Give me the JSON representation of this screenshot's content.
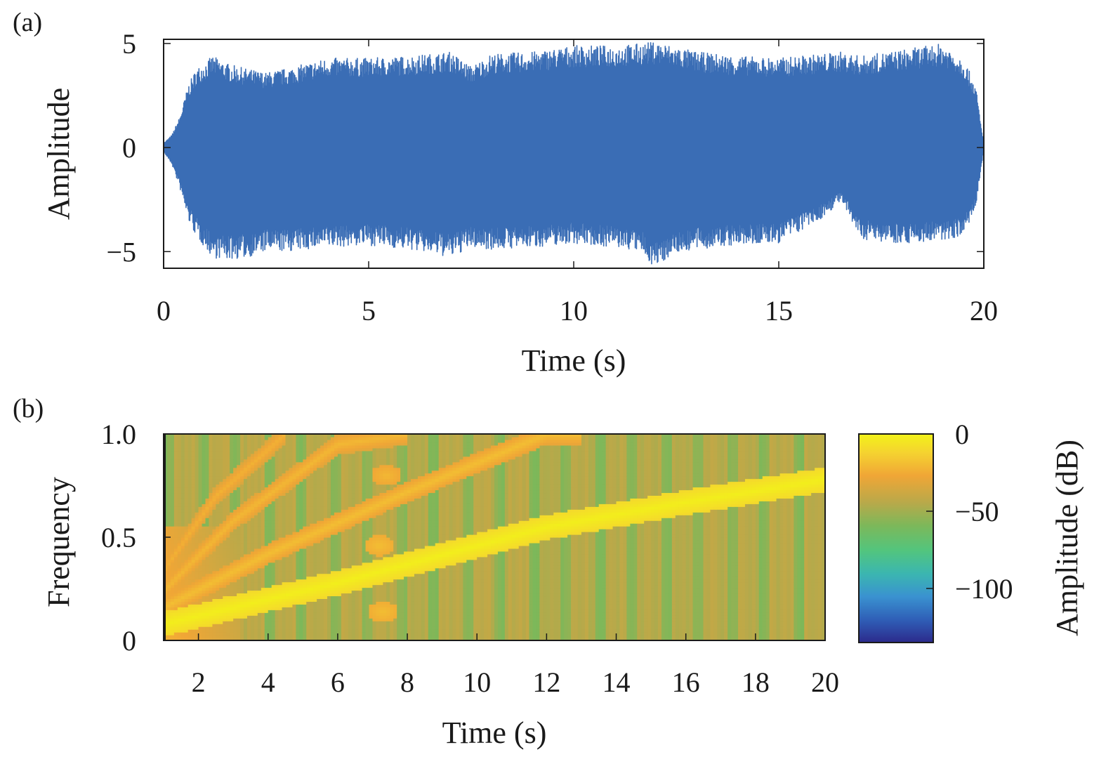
{
  "chart_data": [
    {
      "panel": "(a)",
      "type": "line",
      "xlabel": "Time (s)",
      "ylabel": "Amplitude",
      "xlim": [
        0,
        20
      ],
      "ylim": [
        -5.8,
        5.2
      ],
      "xticks": [
        0,
        5,
        10,
        15,
        20
      ],
      "yticks": [
        -5,
        0,
        5
      ],
      "ytick_labels": [
        "−5",
        "0",
        "5"
      ],
      "grid": false,
      "color": "#3a6db5",
      "envelope": {
        "t": [
          0,
          0.2,
          0.4,
          0.6,
          0.8,
          1.0,
          1.2,
          1.6,
          2.0,
          2.5,
          3.0,
          4.0,
          5.0,
          6.0,
          7.0,
          7.5,
          8.0,
          9.0,
          10.0,
          11.0,
          11.6,
          12.0,
          12.4,
          13.0,
          14.0,
          15.0,
          16.0,
          16.5,
          17.0,
          18.0,
          19.0,
          19.5,
          19.8,
          20.0
        ],
        "upper": [
          0.2,
          0.6,
          1.5,
          3.0,
          3.8,
          4.1,
          4.4,
          4.0,
          3.8,
          3.6,
          3.8,
          4.3,
          4.3,
          4.4,
          4.6,
          3.9,
          4.5,
          4.6,
          4.9,
          4.9,
          5.0,
          5.1,
          4.9,
          4.6,
          4.4,
          4.3,
          4.5,
          4.6,
          4.4,
          4.7,
          5.0,
          4.3,
          3.0,
          0.1
        ],
        "lower": [
          -0.2,
          -0.8,
          -2.0,
          -3.5,
          -4.3,
          -4.8,
          -5.3,
          -5.4,
          -5.3,
          -5.0,
          -5.0,
          -4.8,
          -4.7,
          -4.9,
          -5.3,
          -4.8,
          -4.9,
          -4.8,
          -4.6,
          -4.8,
          -5.0,
          -5.8,
          -5.1,
          -4.9,
          -4.7,
          -4.6,
          -3.5,
          -2.6,
          -4.4,
          -4.6,
          -4.5,
          -4.2,
          -3.0,
          -0.1
        ]
      }
    },
    {
      "panel": "(b)",
      "type": "heatmap",
      "xlabel": "Time (s)",
      "ylabel": "Frequency",
      "xlim": [
        1,
        20
      ],
      "ylim": [
        0,
        1.0
      ],
      "xticks": [
        2,
        4,
        6,
        8,
        10,
        12,
        14,
        16,
        18,
        20
      ],
      "yticks": [
        0,
        0.5,
        1.0
      ],
      "ytick_labels": [
        "0",
        "0.5",
        "1.0"
      ],
      "colorbar": {
        "label": "Amplitude (dB)",
        "range": [
          -135,
          0
        ],
        "ticks": [
          0,
          -50,
          -100
        ],
        "tick_labels": [
          "0",
          "−50",
          "−100"
        ],
        "colormap": [
          "#2c2a8c",
          "#2f5fb7",
          "#3a92d0",
          "#3bb6b0",
          "#52c57e",
          "#7cb85a",
          "#b8a94a",
          "#f0a636",
          "#f5d330",
          "#f2f219"
        ]
      },
      "background_db": -45,
      "ridges": [
        {
          "t": [
            1.0,
            6.0,
            12.0,
            16.0,
            20.0
          ],
          "f": [
            0.08,
            0.28,
            0.55,
            0.67,
            0.78
          ],
          "db": -2,
          "width": 0.06
        },
        {
          "t": [
            1.0,
            4.0,
            8.0,
            12.0,
            13.0
          ],
          "f": [
            0.16,
            0.42,
            0.72,
            1.0,
            1.0
          ],
          "db": -22,
          "width": 0.05
        },
        {
          "t": [
            1.0,
            3.0,
            6.0,
            8.0
          ],
          "f": [
            0.24,
            0.58,
            0.95,
            1.0
          ],
          "db": -24,
          "width": 0.05
        },
        {
          "t": [
            1.0,
            2.5,
            4.5
          ],
          "f": [
            0.34,
            0.7,
            1.0
          ],
          "db": -26,
          "width": 0.05
        }
      ],
      "blobs": [
        {
          "t": 7.3,
          "f": 0.14,
          "db": -22
        },
        {
          "t": 7.2,
          "f": 0.46,
          "db": -22
        },
        {
          "t": 7.4,
          "f": 0.8,
          "db": -24
        }
      ]
    }
  ]
}
